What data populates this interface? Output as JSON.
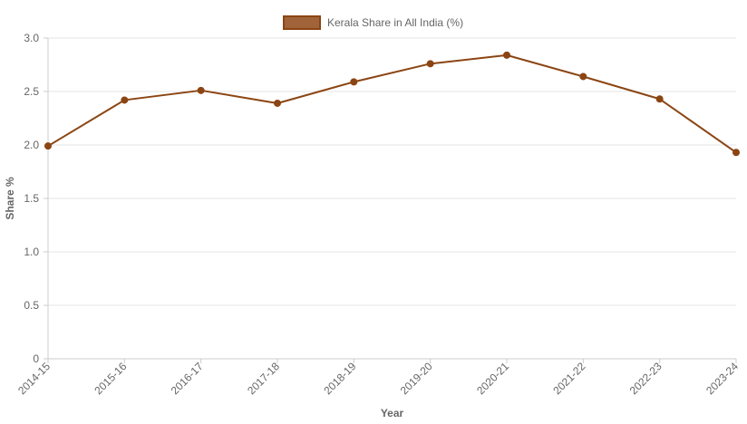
{
  "chart_data": {
    "type": "line",
    "categories": [
      "2014-15",
      "2015-16",
      "2016-17",
      "2017-18",
      "2018-19",
      "2019-20",
      "2020-21",
      "2021-22",
      "2022-23",
      "2023-24"
    ],
    "series": [
      {
        "name": "Kerala Share in All India (%)",
        "values": [
          1.99,
          2.42,
          2.51,
          2.39,
          2.59,
          2.76,
          2.84,
          2.64,
          2.43,
          1.93
        ],
        "color": "#8B4513",
        "fill": "#A0633A"
      }
    ],
    "xlabel": "Year",
    "ylabel": "Share %",
    "ylim": [
      0,
      3.0
    ],
    "yticks": [
      "0",
      "0.5",
      "1.0",
      "1.5",
      "2.0",
      "2.5",
      "3.0"
    ],
    "legend_position": "top-center",
    "grid": true
  }
}
